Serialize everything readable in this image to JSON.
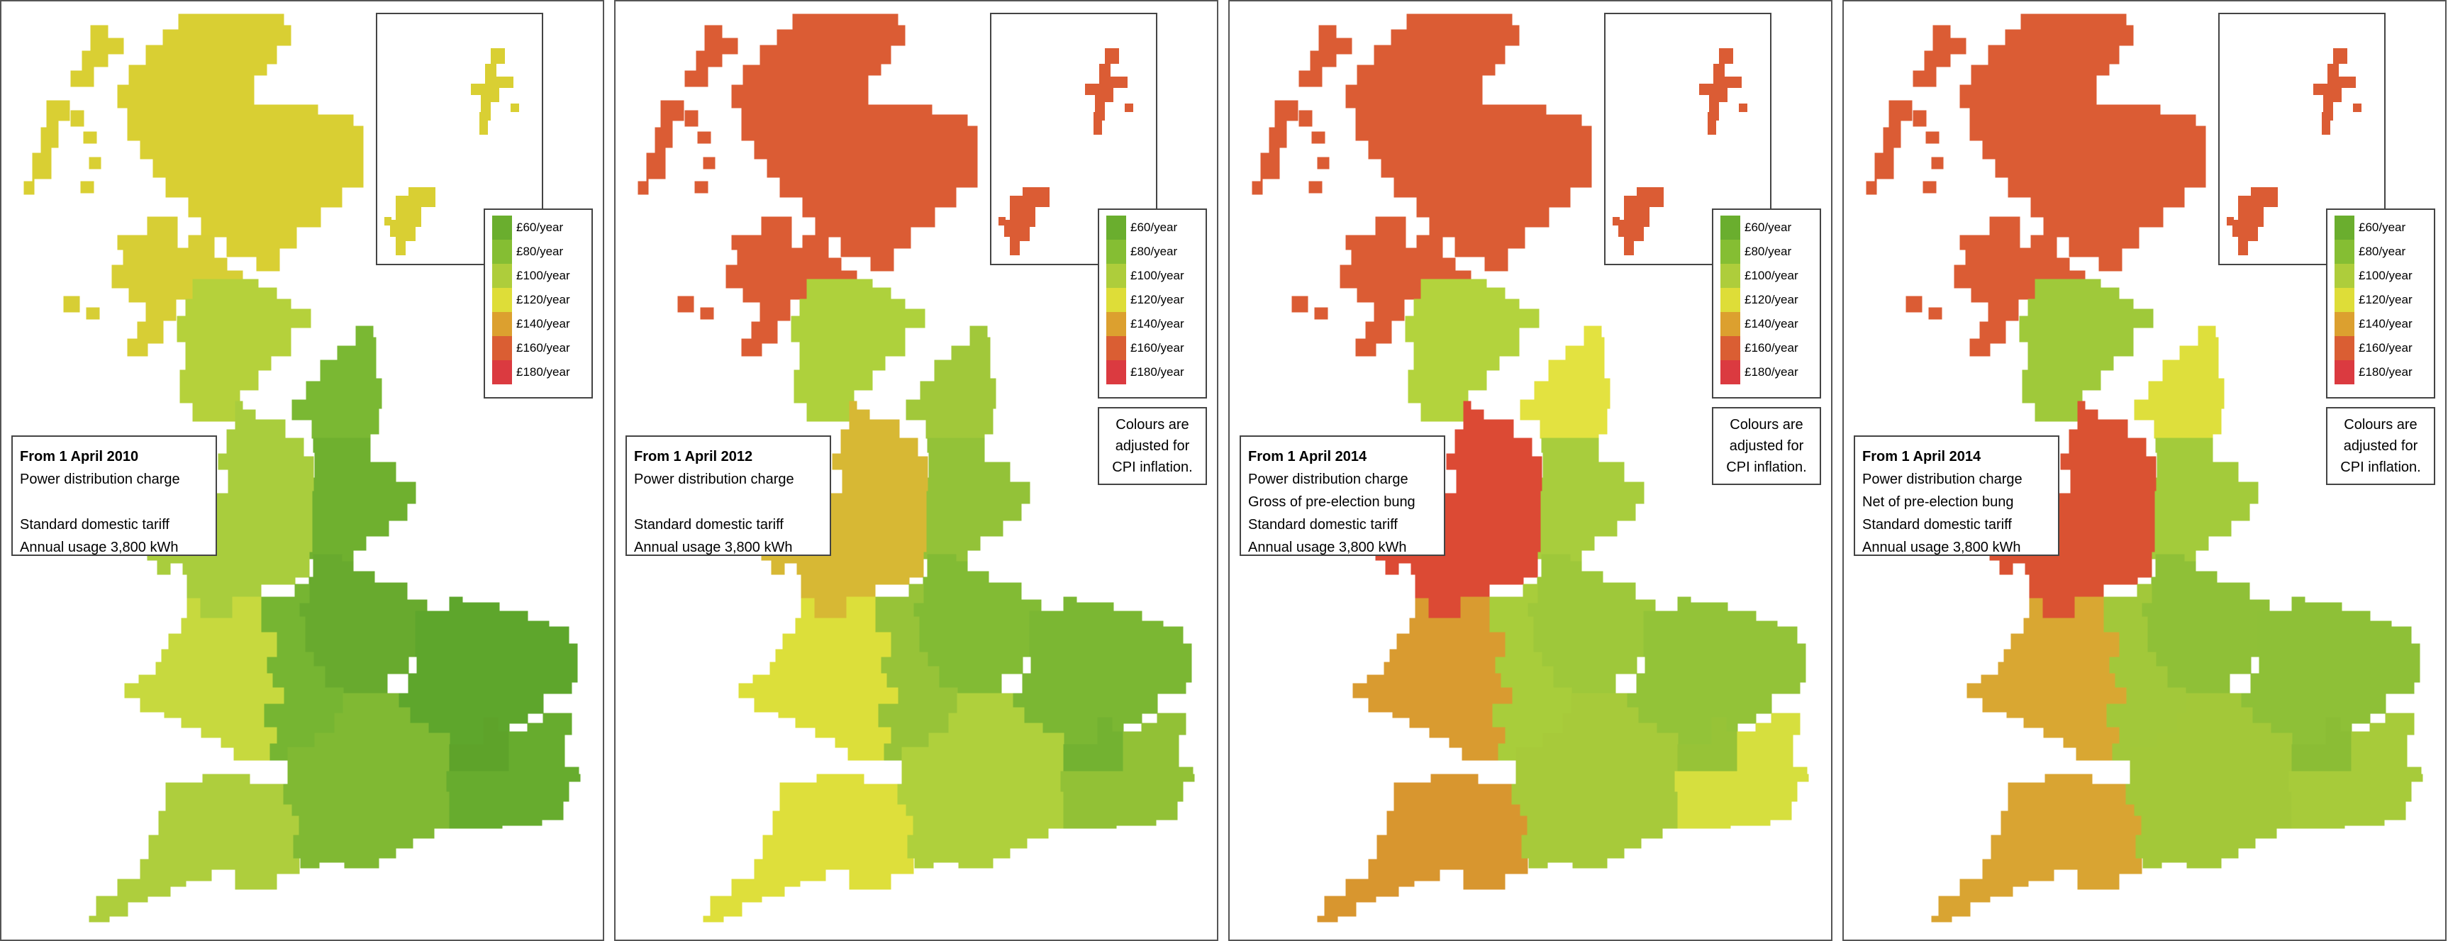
{
  "legend": [
    {
      "label": "£60/year",
      "color": "#6aae2e"
    },
    {
      "label": "£80/year",
      "color": "#85be33"
    },
    {
      "label": "£100/year",
      "color": "#aecd3b"
    },
    {
      "label": "£120/year",
      "color": "#dedd38"
    },
    {
      "label": "£140/year",
      "color": "#dca02f"
    },
    {
      "label": "£160/year",
      "color": "#da5e33"
    },
    {
      "label": "£180/year",
      "color": "#db3a40"
    }
  ],
  "note": [
    "Colours are",
    "adjusted for",
    "CPI inflation."
  ],
  "panels": [
    {
      "caption": {
        "title": "From 1 April 2010",
        "lines": [
          "Power distribution charge",
          "",
          "Standard domestic tariff",
          "Annual usage 3,800 kWh"
        ]
      },
      "show_note": false,
      "regions": {
        "north_scotland": "#d9cf33",
        "south_scotland": "#d7ce35",
        "north_west": "#b5d13b",
        "north_east": "#7ab833",
        "yorkshire": "#6fb02f",
        "merseyside_nwales": "#a9cd3d",
        "east_midlands": "#68aa2e",
        "midlands": "#76b532",
        "south_wales": "#c7d93e",
        "eastern": "#5ea62c",
        "south_west": "#aece3d",
        "southern": "#80b933",
        "london": "#5ea32a",
        "south_east": "#67ac2e"
      }
    },
    {
      "caption": {
        "title": "From 1 April 2012",
        "lines": [
          "Power distribution charge",
          "",
          "Standard domestic tariff",
          "Annual usage 3,800 kWh"
        ]
      },
      "show_note": true,
      "regions": {
        "north_scotland": "#db5c34",
        "south_scotland": "#db5c34",
        "north_west": "#aed13c",
        "north_east": "#a1c83a",
        "yorkshire": "#93c238",
        "merseyside_nwales": "#d7b834",
        "east_midlands": "#82bb34",
        "midlands": "#97c338",
        "south_wales": "#dcdf3a",
        "eastern": "#7bb733",
        "south_west": "#dedf3b",
        "southern": "#afd03c",
        "london": "#73b231",
        "south_east": "#92c136"
      }
    },
    {
      "caption": {
        "title": "From 1 April 2014",
        "lines": [
          "Power distribution charge",
          "Gross of pre-election bung",
          "Standard domestic tariff",
          "Annual usage 3,800 kWh"
        ]
      },
      "show_note": true,
      "regions": {
        "north_scotland": "#db5c34",
        "south_scotland": "#db5c34",
        "north_west": "#b3d33d",
        "north_east": "#e3e240",
        "yorkshire": "#a8cd3d",
        "merseyside_nwales": "#dc4a34",
        "east_midlands": "#9ec83a",
        "midlands": "#a8cd3b",
        "south_wales": "#d99b30",
        "eastern": "#93c338",
        "south_west": "#d8962f",
        "southern": "#a7ca3a",
        "london": "#97c337",
        "south_east": "#d6df3e"
      }
    },
    {
      "caption": {
        "title": "From 1 April 2014",
        "lines": [
          "Power distribution charge",
          "Net of pre-election bung",
          "Standard domestic tariff",
          "Annual usage 3,800 kWh"
        ]
      },
      "show_note": true,
      "regions": {
        "north_scotland": "#db5c34",
        "south_scotland": "#db5c34",
        "north_west": "#9fc93a",
        "north_east": "#dedf3c",
        "yorkshire": "#a3cb3b",
        "merseyside_nwales": "#da5232",
        "east_midlands": "#8fc037",
        "midlands": "#a2c83a",
        "south_wales": "#d9a732",
        "eastern": "#8ec037",
        "south_west": "#d9a432",
        "southern": "#a3c839",
        "london": "#8bbd35",
        "south_east": "#a7cb3a"
      }
    }
  ]
}
